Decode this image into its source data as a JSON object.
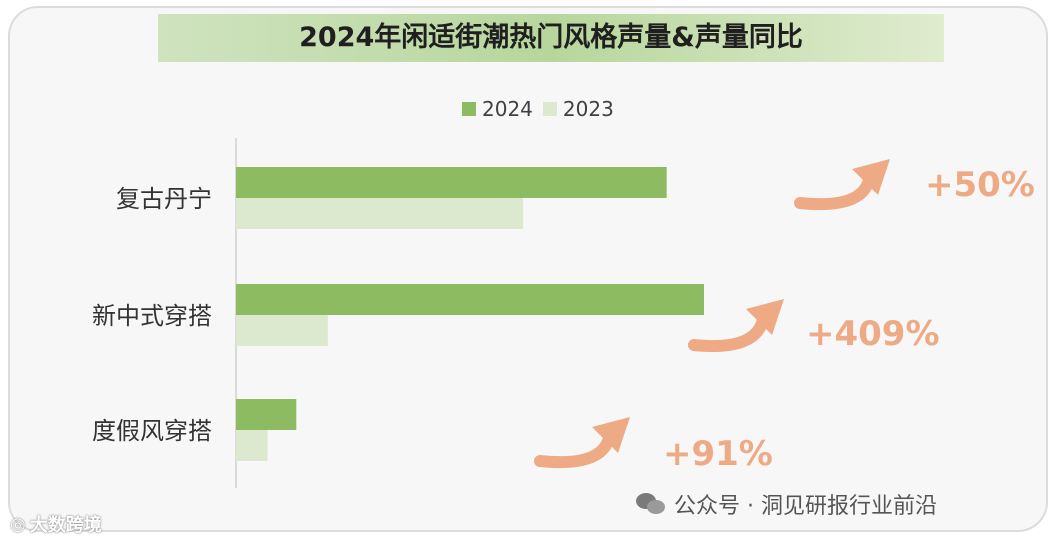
{
  "chart_data": {
    "type": "bar",
    "orientation": "horizontal",
    "title": "2024年闲适街潮热门风格声量&声量同比",
    "categories": [
      "复古丹宁",
      "新中式穿搭",
      "度假风穿搭"
    ],
    "series": [
      {
        "name": "2024",
        "values": [
          1.5,
          1.63,
          0.21
        ],
        "color": "#8dbb62"
      },
      {
        "name": "2023",
        "values": [
          1.0,
          0.32,
          0.11
        ],
        "color": "#dde9cf"
      }
    ],
    "xlim": [
      0,
      1.63
    ],
    "grid": false,
    "legend_position": "top",
    "annotations": [
      {
        "category": "复古丹宁",
        "text": "+50%"
      },
      {
        "category": "新中式穿搭",
        "text": "+409%"
      },
      {
        "category": "度假风穿搭",
        "text": "+91%"
      }
    ],
    "annotation_color": "#eeaa85"
  },
  "watermarks": {
    "left": "大数跨境",
    "right": "公众号 · 洞见研报行业前沿"
  },
  "icons": {
    "left": "weibo-icon",
    "right": "wechat-icon",
    "arrow": "curved-arrow-icon"
  }
}
